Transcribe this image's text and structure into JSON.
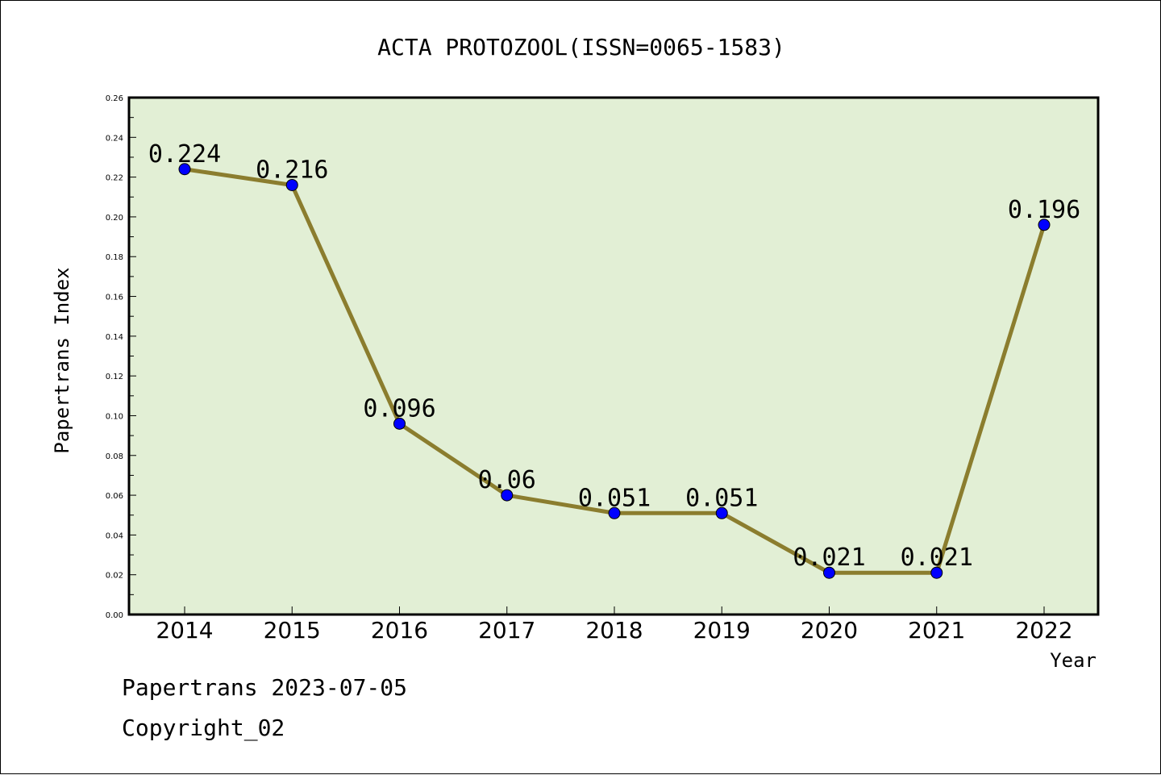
{
  "chart_data": {
    "type": "line",
    "title": "ACTA PROTOZOOL(ISSN=0065-1583)",
    "xlabel": "Year",
    "ylabel": "Papertrans Index",
    "categories": [
      "2014",
      "2015",
      "2016",
      "2017",
      "2018",
      "2019",
      "2020",
      "2021",
      "2022"
    ],
    "series": [
      {
        "values": [
          0.224,
          0.216,
          0.096,
          0.06,
          0.051,
          0.051,
          0.021,
          0.021,
          0.196
        ],
        "data_labels": [
          "0.224",
          "0.216",
          "0.096",
          "0.06",
          "0.051",
          "0.051",
          "0.021",
          "0.021",
          "0.196"
        ],
        "line_color": "#8b7d2e",
        "marker_color": "#0000ff"
      }
    ],
    "ylim": [
      0,
      0.26
    ],
    "yticks": [
      "0.00",
      "0.02",
      "0.04",
      "0.06",
      "0.08",
      "0.10",
      "0.12",
      "0.14",
      "0.16",
      "0.18",
      "0.20",
      "0.22",
      "0.24",
      "0.26"
    ],
    "plot_background": "#e2efd5",
    "grid": false,
    "legend": false
  },
  "footer": {
    "line1": "Papertrans 2023-07-05",
    "line2": "Copyright_02"
  }
}
